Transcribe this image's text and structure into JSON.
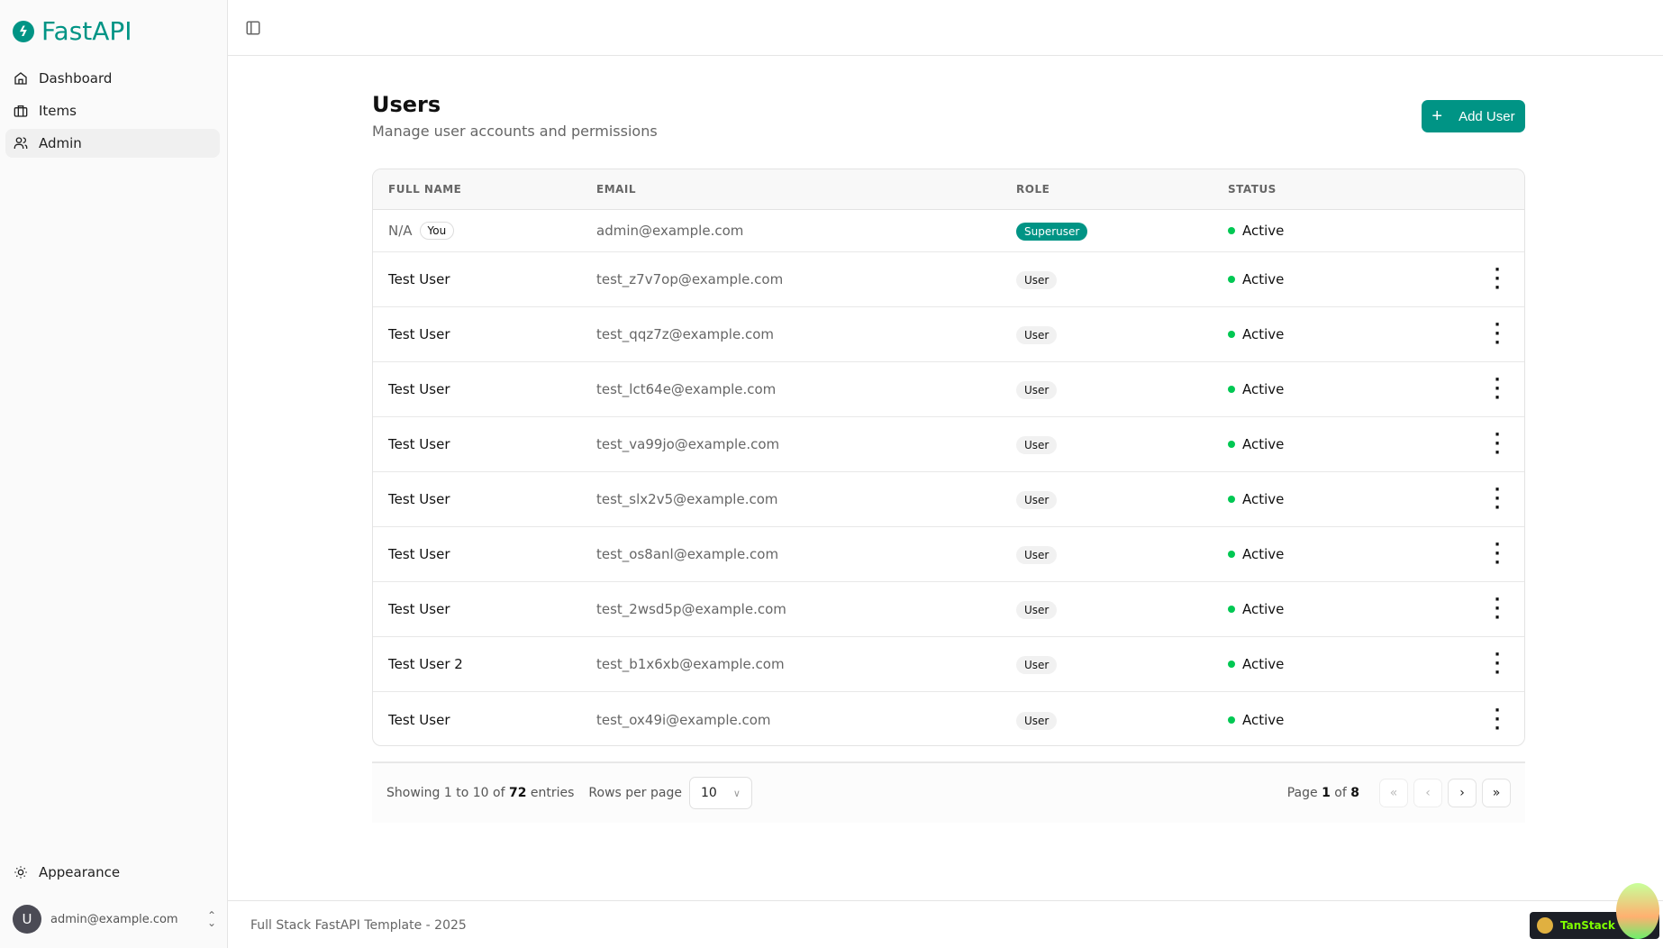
{
  "app": {
    "name": "FastAPI",
    "accent": "#009485"
  },
  "sidebar": {
    "items": [
      {
        "label": "Dashboard",
        "icon": "home-icon"
      },
      {
        "label": "Items",
        "icon": "briefcase-icon"
      },
      {
        "label": "Admin",
        "icon": "users-icon",
        "active": true
      }
    ],
    "appearance": "Appearance",
    "user": {
      "initial": "U",
      "email": "admin@example.com"
    }
  },
  "page": {
    "title": "Users",
    "subtitle": "Manage user accounts and permissions",
    "add_button": "Add User"
  },
  "table": {
    "columns": [
      "FULL NAME",
      "EMAIL",
      "ROLE",
      "STATUS"
    ],
    "you_badge": "You",
    "rows": [
      {
        "name": "N/A",
        "you": true,
        "email": "admin@example.com",
        "role": "Superuser",
        "status": "Active"
      },
      {
        "name": "Test User",
        "email": "test_z7v7op@example.com",
        "role": "User",
        "status": "Active"
      },
      {
        "name": "Test User",
        "email": "test_qqz7z@example.com",
        "role": "User",
        "status": "Active"
      },
      {
        "name": "Test User",
        "email": "test_lct64e@example.com",
        "role": "User",
        "status": "Active"
      },
      {
        "name": "Test User",
        "email": "test_va99jo@example.com",
        "role": "User",
        "status": "Active"
      },
      {
        "name": "Test User",
        "email": "test_slx2v5@example.com",
        "role": "User",
        "status": "Active"
      },
      {
        "name": "Test User",
        "email": "test_os8anl@example.com",
        "role": "User",
        "status": "Active"
      },
      {
        "name": "Test User",
        "email": "test_2wsd5p@example.com",
        "role": "User",
        "status": "Active"
      },
      {
        "name": "Test User 2",
        "email": "test_b1x6xb@example.com",
        "role": "User",
        "status": "Active"
      },
      {
        "name": "Test User",
        "email": "test_ox49i@example.com",
        "role": "User",
        "status": "Active"
      }
    ]
  },
  "pagination": {
    "showing_prefix": "Showing 1 to 10 of",
    "total": "72",
    "showing_suffix": "entries",
    "rows_per_page_label": "Rows per page",
    "rows_per_page": "10",
    "page_label": "Page",
    "page": "1",
    "of_label": "of",
    "pages": "8"
  },
  "footer": {
    "text": "Full Stack FastAPI Template - 2025",
    "devtools": "TanStack"
  }
}
